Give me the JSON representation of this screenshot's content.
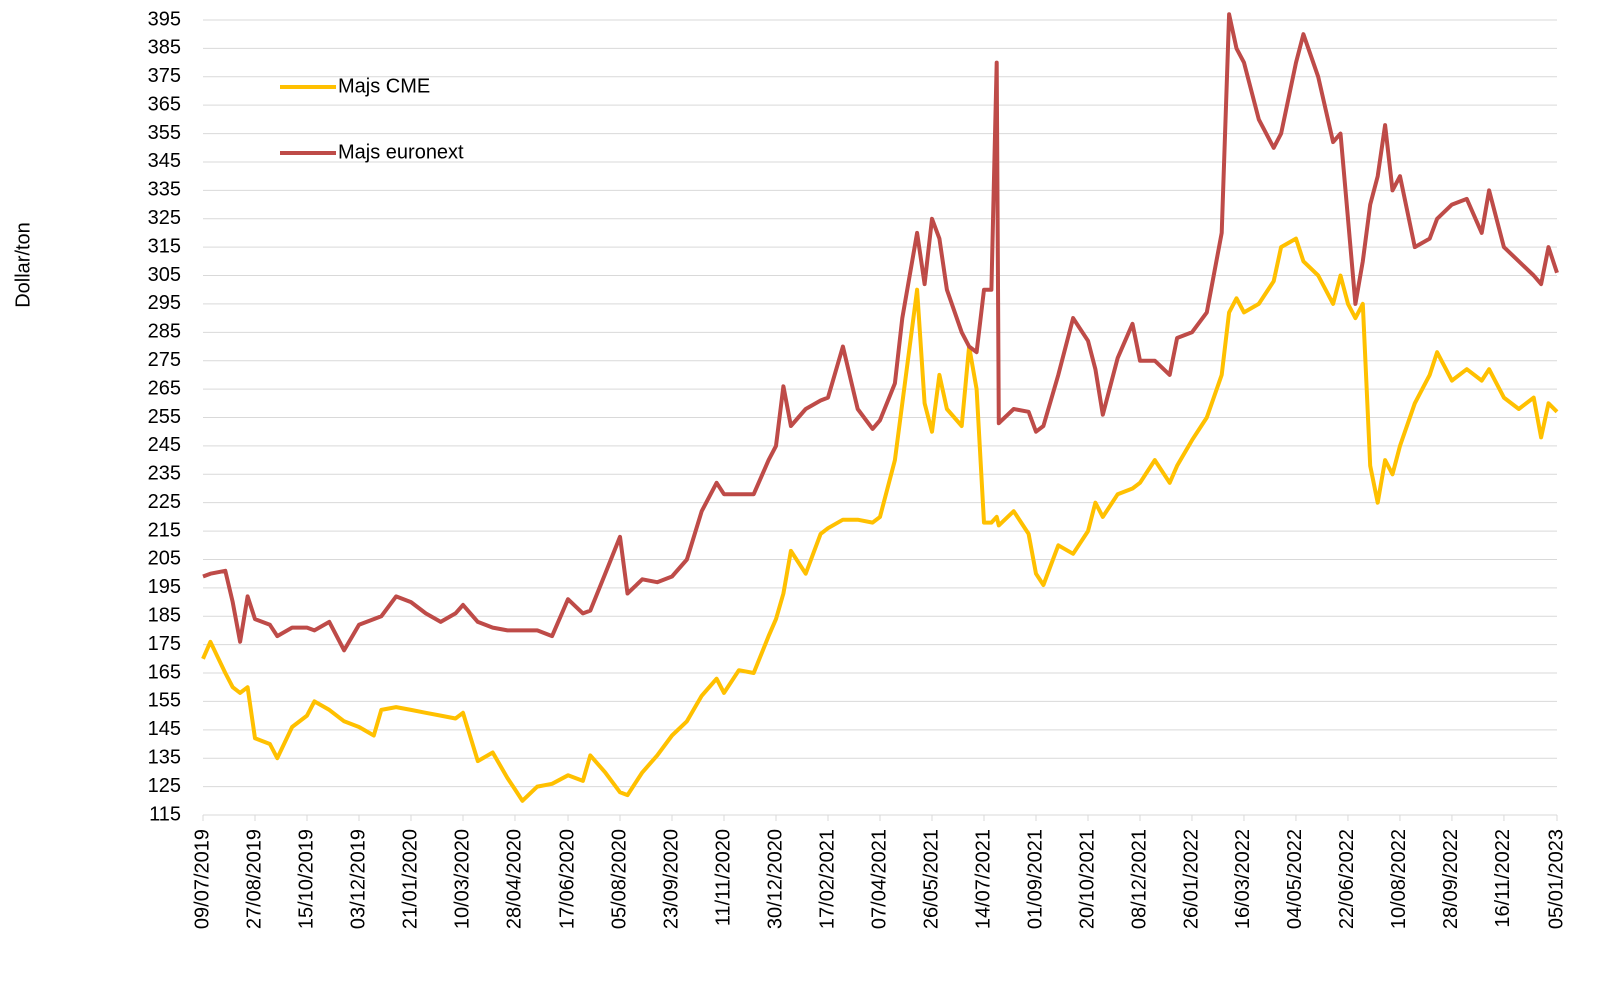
{
  "chart_data": {
    "type": "line",
    "ylabel": "Dollar/ton",
    "x": [
      "09/07/2019",
      "16/07/2019",
      "30/07/2019",
      "06/08/2019",
      "13/08/2019",
      "20/08/2019",
      "27/08/2019",
      "10/09/2019",
      "17/09/2019",
      "01/10/2019",
      "15/10/2019",
      "22/10/2019",
      "05/11/2019",
      "19/11/2019",
      "03/12/2019",
      "17/12/2019",
      "24/12/2019",
      "07/01/2020",
      "21/01/2020",
      "04/02/2020",
      "18/02/2020",
      "03/03/2020",
      "10/03/2020",
      "24/03/2020",
      "07/04/2020",
      "21/04/2020",
      "28/04/2020",
      "05/05/2020",
      "19/05/2020",
      "02/06/2020",
      "17/06/2020",
      "01/07/2020",
      "08/07/2020",
      "22/07/2020",
      "05/08/2020",
      "12/08/2020",
      "26/08/2020",
      "09/09/2020",
      "23/09/2020",
      "07/10/2020",
      "21/10/2020",
      "04/11/2020",
      "11/11/2020",
      "25/11/2020",
      "09/12/2020",
      "23/12/2020",
      "30/12/2020",
      "06/01/2021",
      "13/01/2021",
      "27/01/2021",
      "10/02/2021",
      "17/02/2021",
      "03/03/2021",
      "17/03/2021",
      "31/03/2021",
      "07/04/2021",
      "21/04/2021",
      "28/04/2021",
      "12/05/2021",
      "19/05/2021",
      "26/05/2021",
      "02/06/2021",
      "09/06/2021",
      "23/06/2021",
      "30/06/2021",
      "07/07/2021",
      "14/07/2021",
      "21/07/2021",
      "26/07/2021",
      "28/07/2021",
      "11/08/2021",
      "25/08/2021",
      "01/09/2021",
      "08/09/2021",
      "22/09/2021",
      "06/10/2021",
      "20/10/2021",
      "27/10/2021",
      "03/11/2021",
      "17/11/2021",
      "01/12/2021",
      "08/12/2021",
      "22/12/2021",
      "05/01/2022",
      "12/01/2022",
      "26/01/2022",
      "09/02/2022",
      "23/02/2022",
      "02/03/2022",
      "09/03/2022",
      "16/03/2022",
      "30/03/2022",
      "13/04/2022",
      "20/04/2022",
      "04/05/2022",
      "11/05/2022",
      "25/05/2022",
      "08/06/2022",
      "15/06/2022",
      "22/06/2022",
      "29/06/2022",
      "06/07/2022",
      "13/07/2022",
      "20/07/2022",
      "27/07/2022",
      "03/08/2022",
      "10/08/2022",
      "24/08/2022",
      "07/09/2022",
      "14/09/2022",
      "28/09/2022",
      "12/10/2022",
      "26/10/2022",
      "02/11/2022",
      "16/11/2022",
      "30/11/2022",
      "14/12/2022",
      "21/12/2022",
      "28/12/2022",
      "05/01/2023"
    ],
    "series": [
      {
        "name": "Majs CME",
        "color": "#ffc000",
        "values": [
          170,
          176,
          165,
          160,
          158,
          160,
          142,
          140,
          135,
          146,
          150,
          155,
          152,
          148,
          146,
          143,
          152,
          153,
          152,
          151,
          150,
          149,
          151,
          134,
          137,
          128,
          124,
          120,
          125,
          126,
          129,
          127,
          136,
          130,
          123,
          122,
          130,
          136,
          143,
          148,
          157,
          163,
          158,
          166,
          165,
          178,
          184,
          193,
          208,
          200,
          214,
          216,
          219,
          219,
          218,
          220,
          240,
          260,
          300,
          260,
          250,
          270,
          258,
          252,
          280,
          265,
          218,
          218,
          220,
          217,
          222,
          214,
          200,
          196,
          210,
          207,
          215,
          225,
          220,
          228,
          230,
          232,
          240,
          232,
          238,
          247,
          255,
          270,
          292,
          297,
          292,
          295,
          303,
          315,
          318,
          310,
          305,
          295,
          305,
          295,
          290,
          295,
          238,
          225,
          240,
          235,
          245,
          260,
          270,
          278,
          268,
          272,
          268,
          272,
          262,
          258,
          262,
          248,
          260,
          257
        ]
      },
      {
        "name": "Majs euronext",
        "color": "#be4b48",
        "values": [
          199,
          200,
          201,
          190,
          176,
          192,
          184,
          182,
          178,
          181,
          181,
          180,
          183,
          173,
          182,
          184,
          185,
          192,
          190,
          186,
          183,
          186,
          189,
          183,
          181,
          180,
          180,
          180,
          180,
          178,
          191,
          186,
          187,
          200,
          213,
          193,
          198,
          197,
          199,
          205,
          222,
          232,
          228,
          228,
          228,
          240,
          245,
          266,
          252,
          258,
          261,
          262,
          280,
          258,
          251,
          254,
          267,
          290,
          320,
          302,
          325,
          318,
          300,
          285,
          280,
          278,
          300,
          300,
          380,
          253,
          258,
          257,
          250,
          252,
          270,
          290,
          282,
          272,
          256,
          276,
          288,
          275,
          275,
          270,
          283,
          285,
          292,
          320,
          397,
          385,
          380,
          360,
          350,
          355,
          380,
          390,
          375,
          352,
          355,
          325,
          295,
          310,
          330,
          340,
          358,
          335,
          340,
          315,
          318,
          325,
          330,
          332,
          320,
          335,
          315,
          310,
          305,
          302,
          315,
          306
        ]
      }
    ],
    "xlim": [
      "09/07/2019",
      "05/01/2023"
    ],
    "xticks": [
      "09/07/2019",
      "27/08/2019",
      "15/10/2019",
      "03/12/2019",
      "21/01/2020",
      "10/03/2020",
      "28/04/2020",
      "17/06/2020",
      "05/08/2020",
      "23/09/2020",
      "11/11/2020",
      "30/12/2020",
      "17/02/2021",
      "07/04/2021",
      "26/05/2021",
      "14/07/2021",
      "01/09/2021",
      "20/10/2021",
      "08/12/2021",
      "26/01/2022",
      "16/03/2022",
      "04/05/2022",
      "22/06/2022",
      "10/08/2022",
      "28/09/2022",
      "16/11/2022",
      "05/01/2023"
    ],
    "ylim": [
      115,
      395
    ],
    "yticks": [
      115,
      125,
      135,
      145,
      155,
      165,
      175,
      185,
      195,
      205,
      215,
      225,
      235,
      245,
      255,
      265,
      275,
      285,
      295,
      305,
      315,
      325,
      335,
      345,
      355,
      365,
      375,
      385,
      395
    ],
    "grid": true,
    "legend": "upper left"
  }
}
